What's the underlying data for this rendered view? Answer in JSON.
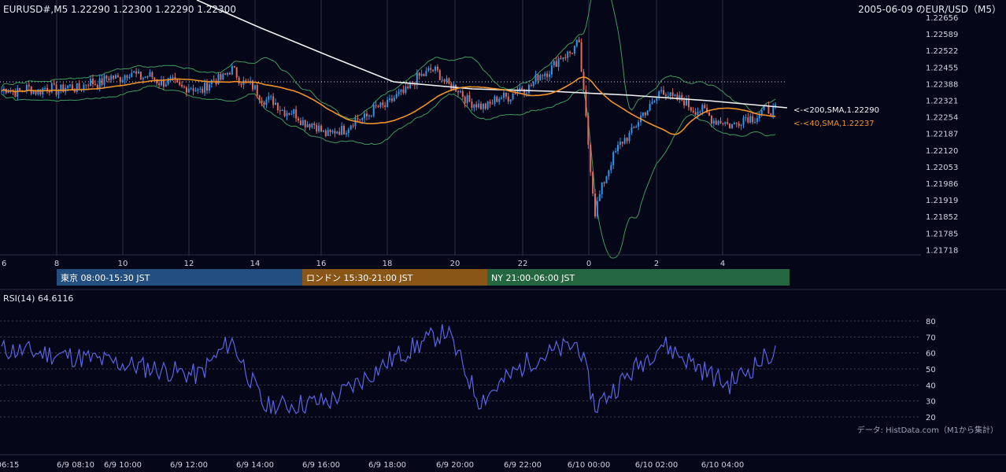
{
  "header": {
    "symbol_info": "EURUSD#,M5 1.22290 1.22300 1.22290 1.22300",
    "title": "2005-06-09 のEUR/USD（M5）"
  },
  "price_axis": {
    "ticks": [
      "1.22656",
      "1.22589",
      "1.22522",
      "1.22455",
      "1.22388",
      "1.22321",
      "1.22254",
      "1.22187",
      "1.22120",
      "1.22053",
      "1.21986",
      "1.21919",
      "1.21852",
      "1.21785",
      "1.21718"
    ],
    "min": 1.21718,
    "max": 1.22656
  },
  "hour_axis": {
    "labels": [
      "6",
      "8",
      "10",
      "12",
      "14",
      "16",
      "18",
      "20",
      "22",
      "0",
      "2",
      "4"
    ]
  },
  "indicators": {
    "sma200_label": "<-<200,SMA,1.22290",
    "sma40_label": "<-<40,SMA,1.22237",
    "sma200_color": "#f2f2f2",
    "sma40_color": "#f0922c",
    "bollinger_color": "#3f9a5a",
    "bull_color": "#2f96e8",
    "bear_color": "#e06a5c"
  },
  "sessions": [
    {
      "label": "東京 08:00-15:30 JST",
      "color": "#234e80"
    },
    {
      "label": "ロンドン 15:30-21:00 JST",
      "color": "#8a5617"
    },
    {
      "label": "NY 21:00-06:00 JST",
      "color": "#246640"
    }
  ],
  "rsi": {
    "label": "RSI(14) 64.6116",
    "ticks": [
      "80",
      "70",
      "60",
      "50",
      "40",
      "30",
      "20"
    ],
    "line_color": "#5a63e0"
  },
  "footer": {
    "source": "データ: HistData.com（M1から集計）",
    "time_labels": [
      "06:15",
      "6/9 08:10",
      "6/9 10:00",
      "6/9 12:00",
      "6/9 14:00",
      "6/9 16:00",
      "6/9 18:00",
      "6/9 20:00",
      "6/9 22:00",
      "6/10 00:00",
      "6/10 02:00",
      "6/10 04:00"
    ]
  },
  "chart_data": {
    "type": "candlestick",
    "symbol": "EURUSD#",
    "timeframe": "M5",
    "ylim": [
      1.21718,
      1.22656
    ],
    "x_hours": [
      "6",
      "8",
      "10",
      "12",
      "14",
      "16",
      "18",
      "20",
      "22",
      "0",
      "2",
      "4"
    ],
    "last_close": 1.223,
    "sma200_last": 1.2229,
    "sma40_last": 1.22237,
    "price_path_keypoints": [
      {
        "x": "06:15",
        "price": 1.2236
      },
      {
        "x": "6/9 08:10",
        "price": 1.2237
      },
      {
        "x": "6/9 10:00",
        "price": 1.2243
      },
      {
        "x": "6/9 12:00",
        "price": 1.2236
      },
      {
        "x": "6/9 13:00",
        "price": 1.2244
      },
      {
        "x": "6/9 14:00",
        "price": 1.2233
      },
      {
        "x": "6/9 16:00",
        "price": 1.2218
      },
      {
        "x": "6/9 18:00",
        "price": 1.2233
      },
      {
        "x": "6/9 19:00",
        "price": 1.2245
      },
      {
        "x": "6/9 20:30",
        "price": 1.2229
      },
      {
        "x": "6/9 22:00",
        "price": 1.2238
      },
      {
        "x": "6/9 23:30",
        "price": 1.2255
      },
      {
        "x": "6/10 00:00",
        "price": 1.2187
      },
      {
        "x": "6/10 00:30",
        "price": 1.2209
      },
      {
        "x": "6/10 02:00",
        "price": 1.2236
      },
      {
        "x": "6/10 04:00",
        "price": 1.2222
      },
      {
        "x": "6/10 05:40",
        "price": 1.223
      }
    ],
    "rsi_keypoints": [
      {
        "x": "06:15",
        "value": 62
      },
      {
        "x": "6/9 08:10",
        "value": 58
      },
      {
        "x": "6/9 12:00",
        "value": 46
      },
      {
        "x": "6/9 13:00",
        "value": 68
      },
      {
        "x": "6/9 14:00",
        "value": 26
      },
      {
        "x": "6/9 16:00",
        "value": 30
      },
      {
        "x": "6/9 18:00",
        "value": 58
      },
      {
        "x": "6/9 19:30",
        "value": 74
      },
      {
        "x": "6/9 20:30",
        "value": 30
      },
      {
        "x": "6/9 22:00",
        "value": 55
      },
      {
        "x": "6/9 23:30",
        "value": 66
      },
      {
        "x": "6/10 00:00",
        "value": 26
      },
      {
        "x": "6/10 02:00",
        "value": 66
      },
      {
        "x": "6/10 04:00",
        "value": 40
      },
      {
        "x": "6/10 05:40",
        "value": 64.6116
      }
    ]
  }
}
